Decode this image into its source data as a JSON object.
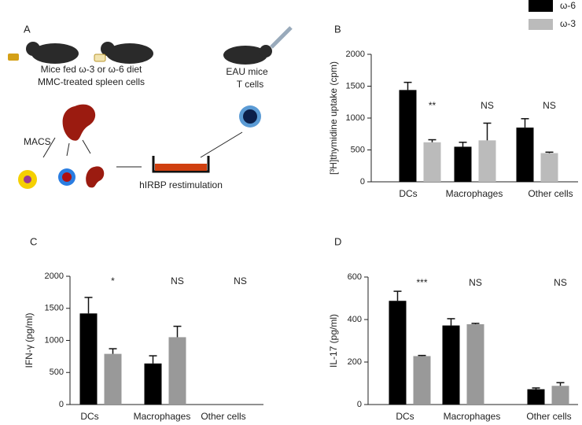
{
  "diagram": {
    "panel": "A",
    "line1": "Mice fed ω-3 or ω-6 diet",
    "line2": "MMC-treated spleen cells",
    "eau1": "EAU mice",
    "eau2": "T cells",
    "macs": "MACS",
    "restim": "hIRBP restimulation"
  },
  "chart_data": [
    {
      "type": "bar",
      "panel": "B",
      "ylabel": "[³H]thymidine uptake (cpm)",
      "categories": [
        "DCs",
        "Macrophages",
        "Other cells"
      ],
      "series": [
        {
          "name": "ω-6",
          "color": "#000000",
          "values": [
            1440,
            550,
            850
          ],
          "error": [
            120,
            70,
            140
          ]
        },
        {
          "name": "ω-3",
          "color": "#bbbbbb",
          "values": [
            620,
            650,
            450
          ],
          "error": [
            40,
            270,
            15
          ]
        }
      ],
      "annotations": [
        "**",
        "NS",
        "NS"
      ],
      "ylim": [
        0,
        2000
      ],
      "yticks": [
        0,
        500,
        1000,
        1500,
        2000
      ]
    },
    {
      "type": "bar",
      "panel": "C",
      "ylabel": "IFN-γ (pg/ml)",
      "categories": [
        "DCs",
        "Macrophages",
        "Other cells"
      ],
      "series": [
        {
          "color": "#000000",
          "values": [
            1420,
            640,
            null
          ],
          "error": [
            250,
            120,
            null
          ]
        },
        {
          "color": "#999999",
          "values": [
            790,
            1050,
            null
          ],
          "error": [
            80,
            170,
            null
          ]
        }
      ],
      "annotations": [
        "*",
        "NS",
        "NS"
      ],
      "ylim": [
        0,
        2000
      ],
      "yticks": [
        0,
        500,
        1000,
        1500,
        2000
      ]
    },
    {
      "type": "bar",
      "panel": "D",
      "ylabel": "IL-17 (pg/ml)",
      "categories": [
        "DCs",
        "Macrophages",
        "Other cells"
      ],
      "series": [
        {
          "color": "#000000",
          "values": [
            488,
            372,
            72
          ],
          "error": [
            45,
            32,
            6
          ]
        },
        {
          "color": "#999999",
          "values": [
            228,
            378,
            88
          ],
          "error": [
            3,
            4,
            15
          ]
        }
      ],
      "annotations": [
        "***",
        "NS",
        "NS"
      ],
      "ylim": [
        0,
        600
      ],
      "yticks": [
        0,
        200,
        400,
        600
      ]
    }
  ]
}
